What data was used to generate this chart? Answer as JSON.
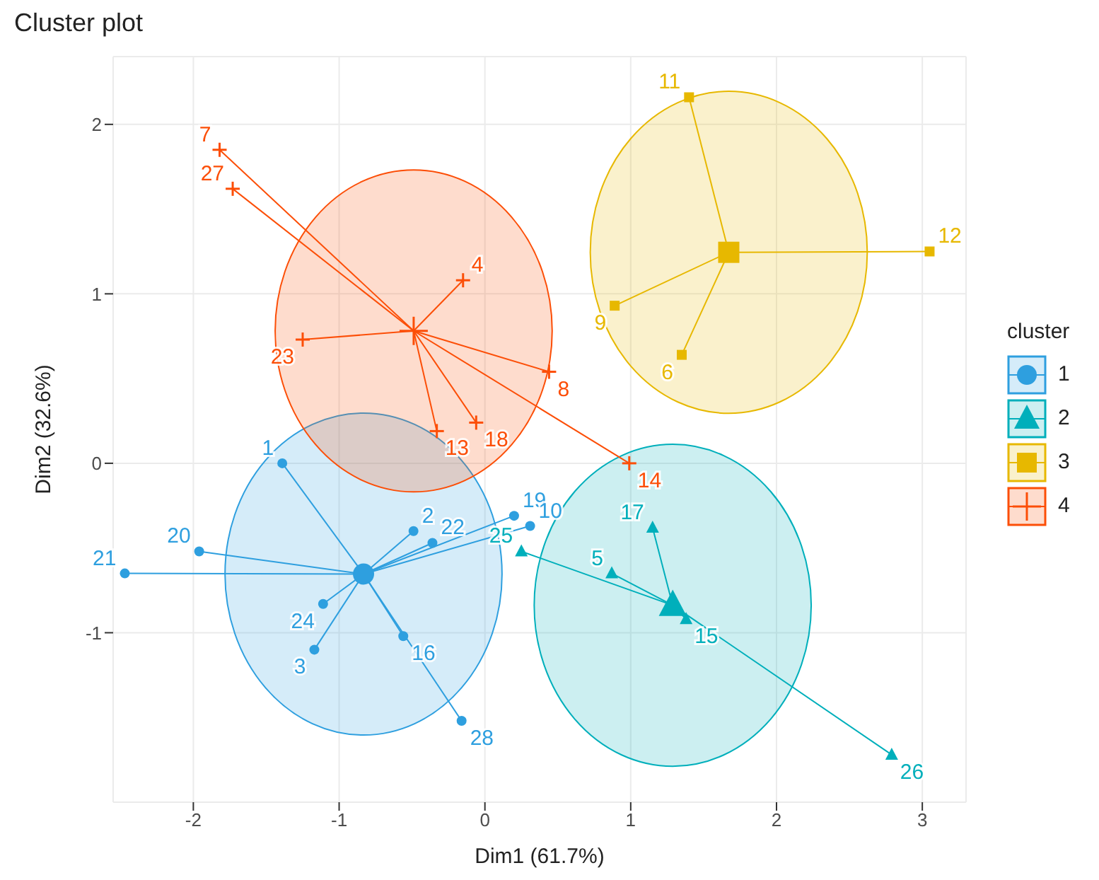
{
  "chart_data": {
    "type": "scatter",
    "title": "Cluster plot",
    "xlabel": "Dim1 (61.7%)",
    "ylabel": "Dim2 (32.6%)",
    "legend_title": "cluster",
    "legend": "right",
    "grid": true,
    "xlim": [
      -2.55,
      3.3
    ],
    "ylim": [
      -2.0,
      2.4
    ],
    "xticks": [
      -2,
      -1,
      0,
      1,
      2,
      3
    ],
    "yticks": [
      -1,
      0,
      1,
      2
    ],
    "series": [
      {
        "name": "1",
        "color": "#2e9fdf",
        "marker": "circle",
        "x": [
          -1.39,
          -0.49,
          -0.36,
          0.2,
          0.31,
          -1.96,
          -2.47,
          -1.11,
          -1.17,
          -0.56,
          -0.16
        ],
        "values": [
          0.0,
          -0.4,
          -0.47,
          -0.31,
          -0.37,
          -0.52,
          -0.65,
          -0.83,
          -1.1,
          -1.02,
          -1.52
        ]
      },
      {
        "name": "2",
        "color": "#00afbb",
        "marker": "triangle",
        "x": [
          0.25,
          0.87,
          1.15,
          1.38,
          2.79
        ],
        "values": [
          -0.52,
          -0.65,
          -0.38,
          -0.92,
          -1.72
        ]
      },
      {
        "name": "3",
        "color": "#e7b800",
        "marker": "square",
        "x": [
          1.4,
          3.05,
          0.89,
          1.35
        ],
        "values": [
          2.16,
          1.25,
          0.93,
          0.64
        ]
      },
      {
        "name": "4",
        "color": "#fc4e07",
        "marker": "cross",
        "x": [
          -1.82,
          -1.73,
          -0.15,
          -1.25,
          0.44,
          -0.06,
          -0.33,
          0.99
        ],
        "values": [
          1.85,
          1.62,
          1.08,
          0.73,
          0.54,
          0.24,
          0.19,
          0.0
        ]
      }
    ],
    "annotations": [
      {
        "text": "1",
        "x": -1.39,
        "y": 0.0
      },
      {
        "text": "2",
        "x": -0.49,
        "y": -0.4
      },
      {
        "text": "22",
        "x": -0.36,
        "y": -0.47
      },
      {
        "text": "19",
        "x": 0.2,
        "y": -0.31
      },
      {
        "text": "10",
        "x": 0.31,
        "y": -0.37
      },
      {
        "text": "20",
        "x": -1.96,
        "y": -0.52
      },
      {
        "text": "21",
        "x": -2.47,
        "y": -0.65
      },
      {
        "text": "24",
        "x": -1.11,
        "y": -0.83
      },
      {
        "text": "3",
        "x": -1.17,
        "y": -1.1
      },
      {
        "text": "16",
        "x": -0.56,
        "y": -1.02
      },
      {
        "text": "28",
        "x": -0.16,
        "y": -1.52
      },
      {
        "text": "25",
        "x": 0.25,
        "y": -0.52
      },
      {
        "text": "5",
        "x": 0.87,
        "y": -0.65
      },
      {
        "text": "17",
        "x": 1.15,
        "y": -0.38
      },
      {
        "text": "15",
        "x": 1.38,
        "y": -0.92
      },
      {
        "text": "26",
        "x": 2.79,
        "y": -1.72
      },
      {
        "text": "11",
        "x": 1.4,
        "y": 2.16
      },
      {
        "text": "12",
        "x": 3.05,
        "y": 1.25
      },
      {
        "text": "9",
        "x": 0.89,
        "y": 0.93
      },
      {
        "text": "6",
        "x": 1.35,
        "y": 0.64
      },
      {
        "text": "7",
        "x": -1.82,
        "y": 1.85
      },
      {
        "text": "27",
        "x": -1.73,
        "y": 1.62
      },
      {
        "text": "4",
        "x": -0.15,
        "y": 1.08
      },
      {
        "text": "23",
        "x": -1.25,
        "y": 0.73
      },
      {
        "text": "8",
        "x": 0.44,
        "y": 0.54
      },
      {
        "text": "18",
        "x": -0.06,
        "y": 0.24
      },
      {
        "text": "13",
        "x": -0.33,
        "y": 0.19
      },
      {
        "text": "14",
        "x": 0.99,
        "y": 0.0
      }
    ]
  }
}
